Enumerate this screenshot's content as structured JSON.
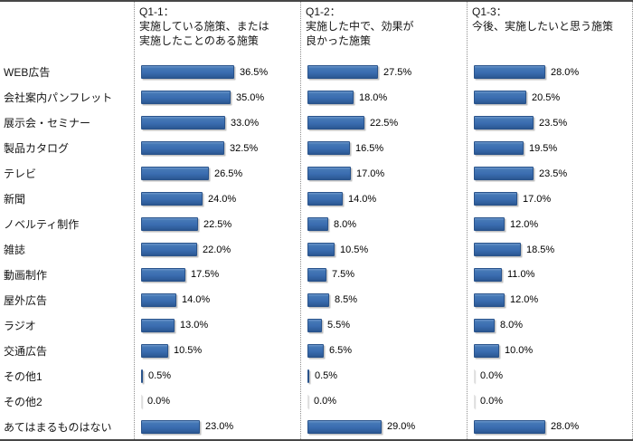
{
  "chart_data": {
    "type": "bar",
    "orientation": "horizontal",
    "unit": "%",
    "xlim": [
      0,
      40
    ],
    "grid": false,
    "legend_position": "none",
    "value_labels": true,
    "bar_color": "#3a6cb0",
    "categories": [
      "WEB広告",
      "会社案内パンフレット",
      "展示会・セミナー",
      "製品カタログ",
      "テレビ",
      "新聞",
      "ノベルティ制作",
      "雑誌",
      "動画制作",
      "屋外広告",
      "ラジオ",
      "交通広告",
      "その他1",
      "その他2",
      "あてはまるものはない"
    ],
    "series": [
      {
        "name": "Q1-1：実施している施策、または実施したことのある施策",
        "values": [
          36.5,
          35.0,
          33.0,
          32.5,
          26.5,
          24.0,
          22.5,
          22.0,
          17.5,
          14.0,
          13.0,
          10.5,
          0.5,
          0.0,
          23.0
        ]
      },
      {
        "name": "Q1-2：実施した中で、効果が良かった施策",
        "values": [
          27.5,
          18.0,
          22.5,
          16.5,
          17.0,
          14.0,
          8.0,
          10.5,
          7.5,
          8.5,
          5.5,
          6.5,
          0.5,
          0.0,
          29.0
        ]
      },
      {
        "name": "Q1-3：今後、実施したいと思う施策",
        "values": [
          28.0,
          20.5,
          23.5,
          19.5,
          23.5,
          17.0,
          12.0,
          18.5,
          11.0,
          12.0,
          8.0,
          10.0,
          0.0,
          0.0,
          28.0
        ]
      }
    ]
  },
  "panels": [
    {
      "lines": [
        "Q1-1：",
        "実施している施策、または",
        "実施したことのある施策"
      ]
    },
    {
      "lines": [
        "Q1-2：",
        "実施した中で、効果が",
        "良かった施策"
      ]
    },
    {
      "lines": [
        "Q1-3：",
        "今後、実施したいと思う施策",
        ""
      ]
    }
  ]
}
